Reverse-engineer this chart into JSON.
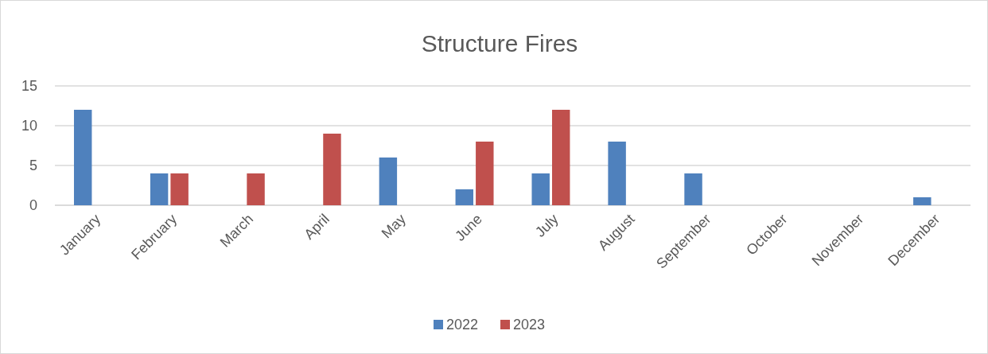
{
  "chart_data": {
    "type": "bar",
    "title": "Structure Fires",
    "categories": [
      "January",
      "February",
      "March",
      "April",
      "May",
      "June",
      "July",
      "August",
      "September",
      "October",
      "November",
      "December"
    ],
    "series": [
      {
        "name": "2022",
        "color": "#4f81bd",
        "values": [
          12,
          4,
          0,
          0,
          6,
          2,
          4,
          8,
          4,
          0,
          0,
          1
        ]
      },
      {
        "name": "2023",
        "color": "#c0504d",
        "values": [
          0,
          4,
          4,
          9,
          0,
          8,
          12,
          0,
          0,
          0,
          0,
          0
        ]
      }
    ],
    "ylim": [
      0,
      15
    ],
    "yticks": [
      0,
      5,
      10,
      15
    ],
    "grid": "y",
    "legend": "bottom"
  }
}
